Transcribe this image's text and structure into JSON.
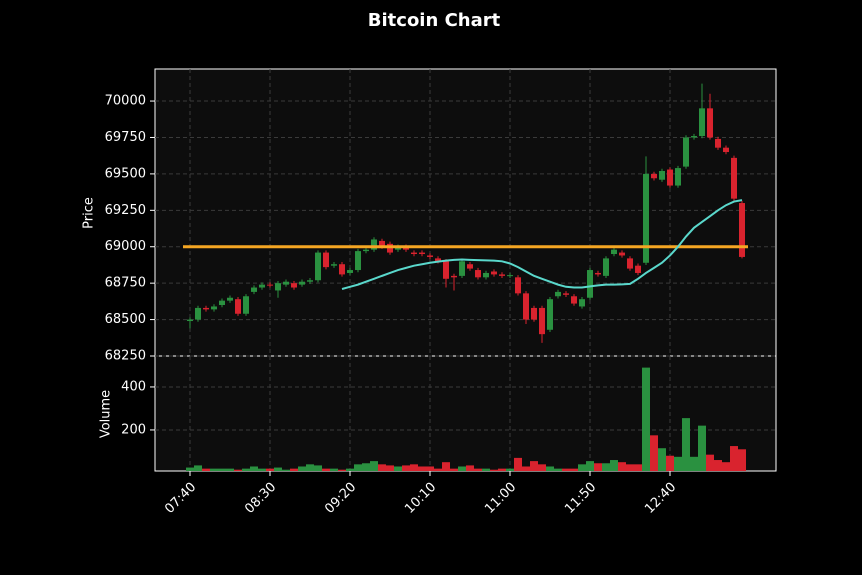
{
  "chart_data": {
    "type": "candlestick",
    "title": "Bitcoin Chart",
    "ylabel": "Price",
    "volume_label": "Volume",
    "categories": [
      "07:40",
      null,
      null,
      null,
      null,
      null,
      null,
      null,
      null,
      null,
      "08:30",
      null,
      null,
      null,
      null,
      null,
      null,
      null,
      null,
      null,
      "09:20",
      null,
      null,
      null,
      null,
      null,
      null,
      null,
      null,
      null,
      "10:10",
      null,
      null,
      null,
      null,
      null,
      null,
      null,
      null,
      null,
      "11:00",
      null,
      null,
      null,
      null,
      null,
      null,
      null,
      null,
      null,
      "11:50",
      null,
      null,
      null,
      null,
      null,
      null,
      null,
      null,
      null,
      "12:40",
      null,
      null,
      null,
      null,
      null,
      null,
      null,
      null,
      null
    ],
    "open": [
      68490,
      68500,
      68580,
      68570,
      68600,
      68630,
      68640,
      68540,
      68690,
      68720,
      68740,
      68700,
      68740,
      68750,
      68740,
      68760,
      68770,
      68960,
      68870,
      68880,
      68820,
      68840,
      68970,
      68980,
      69040,
      69020,
      68980,
      69000,
      68960,
      68960,
      68940,
      68920,
      68900,
      68800,
      68800,
      68880,
      68840,
      68790,
      68830,
      68810,
      68800,
      68790,
      68680,
      68580,
      68580,
      68430,
      68660,
      68680,
      68660,
      68590,
      68650,
      68820,
      68800,
      68950,
      68960,
      68920,
      68870,
      68890,
      69500,
      69460,
      69530,
      69420,
      69550,
      69750,
      69760,
      69950,
      69740,
      69680,
      69610,
      69300
    ],
    "high": [
      68515,
      68595,
      68595,
      68605,
      68645,
      68665,
      68655,
      68675,
      68735,
      68755,
      68755,
      68765,
      68775,
      68765,
      68775,
      68785,
      68975,
      68975,
      68895,
      68895,
      68855,
      68985,
      68995,
      69065,
      69055,
      69035,
      69015,
      69015,
      68975,
      68975,
      68955,
      68935,
      68915,
      68815,
      68915,
      68895,
      68855,
      68835,
      68845,
      68825,
      68820,
      68805,
      68695,
      68595,
      68595,
      68655,
      68705,
      68695,
      68675,
      68655,
      68855,
      68835,
      68935,
      68995,
      68975,
      68935,
      68885,
      69620,
      69515,
      69535,
      69545,
      69555,
      69765,
      69775,
      70120,
      70050,
      69755,
      69695,
      69625,
      69315
    ],
    "low": [
      68440,
      68485,
      68555,
      68555,
      68585,
      68615,
      68525,
      68525,
      68675,
      68705,
      68720,
      68650,
      68725,
      68705,
      68725,
      68745,
      68755,
      68845,
      68855,
      68795,
      68805,
      68825,
      68955,
      68965,
      68985,
      68945,
      68965,
      68965,
      68935,
      68935,
      68915,
      68885,
      68720,
      68700,
      68785,
      68835,
      68775,
      68775,
      68795,
      68785,
      68785,
      68665,
      68470,
      68485,
      68340,
      68415,
      68645,
      68655,
      68595,
      68575,
      68635,
      68795,
      68785,
      68935,
      68925,
      68835,
      68805,
      68875,
      69455,
      69445,
      69405,
      69405,
      69535,
      69735,
      69745,
      69735,
      69665,
      69635,
      69315,
      68920
    ],
    "close": [
      68500,
      68580,
      68570,
      68590,
      68630,
      68650,
      68540,
      68660,
      68720,
      68740,
      68735,
      68750,
      68760,
      68720,
      68760,
      68770,
      68960,
      68860,
      68880,
      68810,
      68840,
      68970,
      68980,
      69050,
      69000,
      68960,
      69000,
      68980,
      68950,
      68950,
      68930,
      68900,
      68780,
      68790,
      68900,
      68850,
      68790,
      68820,
      68810,
      68800,
      68805,
      68680,
      68500,
      68500,
      68400,
      68640,
      68690,
      68670,
      68610,
      68640,
      68840,
      68810,
      68920,
      68980,
      68940,
      68850,
      68820,
      69500,
      69470,
      69520,
      69420,
      69540,
      69750,
      69760,
      69950,
      69750,
      69680,
      69650,
      69330,
      68930
    ],
    "volume": [
      25,
      35,
      20,
      20,
      20,
      20,
      15,
      20,
      30,
      20,
      20,
      25,
      15,
      20,
      30,
      40,
      35,
      20,
      20,
      15,
      20,
      40,
      45,
      55,
      40,
      35,
      30,
      35,
      40,
      30,
      30,
      20,
      50,
      20,
      30,
      35,
      20,
      20,
      15,
      20,
      20,
      70,
      30,
      55,
      40,
      30,
      20,
      20,
      20,
      40,
      55,
      45,
      45,
      60,
      50,
      40,
      40,
      490,
      175,
      115,
      80,
      75,
      255,
      75,
      220,
      85,
      60,
      50,
      125,
      110
    ],
    "sma": [
      null,
      null,
      null,
      null,
      null,
      null,
      null,
      null,
      null,
      null,
      null,
      null,
      null,
      null,
      null,
      null,
      null,
      null,
      null,
      68710,
      68725,
      68740,
      68760,
      68780,
      68800,
      68820,
      68840,
      68855,
      68870,
      68880,
      68890,
      68898,
      68905,
      68910,
      68912,
      68910,
      68908,
      68906,
      68905,
      68900,
      68885,
      68860,
      68830,
      68800,
      68780,
      68760,
      68740,
      68725,
      68720,
      68720,
      68728,
      68735,
      68740,
      68740,
      68742,
      68745,
      68780,
      68820,
      68855,
      68890,
      68940,
      69000,
      69070,
      69130,
      69170,
      69210,
      69250,
      69285,
      69310,
      69320
    ],
    "sma_color": "#5ad8cc",
    "hline": 69000,
    "hline_color": "#f5a623",
    "up_color": "#2a9140",
    "down_color": "#d9232e",
    "ylim": [
      68250,
      70220
    ],
    "yticks": [
      68250,
      68500,
      68750,
      69000,
      69250,
      69500,
      69750,
      70000
    ],
    "volume_ylim": [
      9,
      544
    ],
    "volume_yticks": [
      200,
      400
    ],
    "grid": true
  }
}
